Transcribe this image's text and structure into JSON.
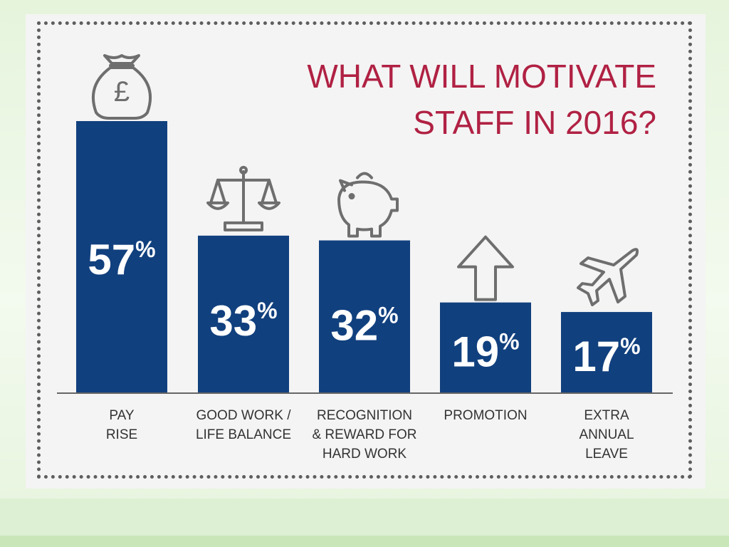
{
  "slide": {
    "background": "#e6f4dc",
    "card_background": "#f4f4f4"
  },
  "chart_data": {
    "type": "bar",
    "title": [
      "WHAT WILL MOTIVATE",
      "STAFF IN 2016?"
    ],
    "categories": [
      [
        "PAY",
        "RISE"
      ],
      [
        "GOOD WORK /",
        "LIFE BALANCE"
      ],
      [
        "RECOGNITION",
        "& REWARD FOR",
        "HARD WORK"
      ],
      [
        "PROMOTION"
      ],
      [
        "EXTRA",
        "ANNUAL",
        "LEAVE"
      ]
    ],
    "values": [
      57,
      33,
      32,
      19,
      17
    ],
    "value_labels": [
      "57%",
      "33%",
      "32%",
      "19%",
      "17%"
    ],
    "icons": [
      "money-bag-icon",
      "scales-icon",
      "piggy-bank-icon",
      "up-arrow-icon",
      "airplane-icon"
    ],
    "icon_glyphs": [
      "£",
      "",
      "",
      "",
      ""
    ],
    "ylim": [
      0,
      57
    ],
    "colors": {
      "bar": "#11407e",
      "title": "#b02143",
      "axis": "#666666",
      "icon_stroke": "#6e6e6e"
    },
    "grid": false,
    "legend": false
  }
}
